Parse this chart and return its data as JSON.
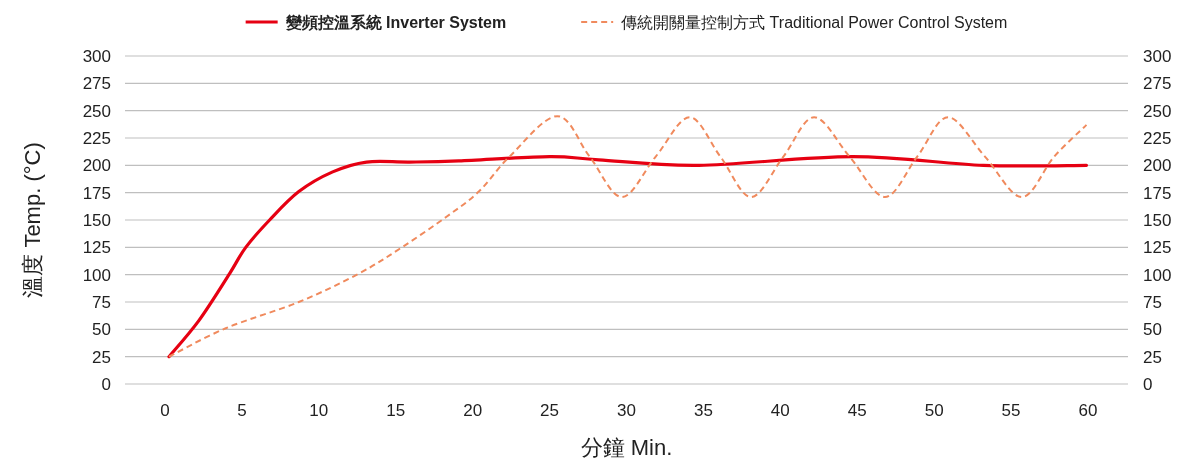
{
  "chart_data": {
    "type": "line",
    "xlabel": "分鐘 Min.",
    "ylabel": "溫度 Temp. (°C)",
    "xlim": [
      -2.6,
      62.6
    ],
    "xticks": [
      0,
      5,
      10,
      15,
      20,
      25,
      30,
      35,
      40,
      45,
      50,
      55,
      60
    ],
    "ylim": [
      0,
      300
    ],
    "yticks": [
      0,
      25,
      50,
      75,
      100,
      125,
      150,
      175,
      200,
      225,
      250,
      275,
      300
    ],
    "y2lim": [
      0,
      300
    ],
    "y2ticks": [
      0,
      25,
      50,
      75,
      100,
      125,
      150,
      175,
      200,
      225,
      250,
      275,
      300
    ],
    "grid": "y",
    "legend": "top",
    "series": [
      {
        "name": "變頻控溫系統 Inverter System",
        "color": "#e60012",
        "line_style": "solid",
        "x": [
          0.26,
          2.2,
          4.2,
          5.25,
          6.8,
          8.7,
          10.9,
          13.1,
          15.9,
          19.1,
          25,
          28.2,
          34.7,
          44.7,
          53.2,
          59.9
        ],
        "values": [
          25,
          58,
          101,
          125,
          150,
          176,
          194,
          203,
          203,
          204,
          208,
          205,
          200,
          208,
          200,
          200
        ]
      },
      {
        "name": "傳統開關量控制方式 Traditional Power Control System",
        "color": "#f08a5d",
        "line_style": "dashed",
        "x": [
          0.26,
          3.95,
          8.7,
          12.6,
          15.4,
          18.3,
          20.4,
          22.4,
          25.5,
          27.6,
          29.7,
          31.9,
          34.1,
          36.1,
          38.1,
          40.2,
          42.2,
          44.5,
          46.8,
          48.9,
          50.9,
          53.3,
          55.7,
          57.8,
          59.9
        ],
        "values": [
          25,
          51,
          75,
          101,
          125,
          153,
          176,
          208,
          245,
          208,
          171,
          208,
          244,
          208,
          171,
          208,
          244,
          208,
          171,
          208,
          244,
          208,
          171,
          208,
          237
        ]
      }
    ]
  }
}
